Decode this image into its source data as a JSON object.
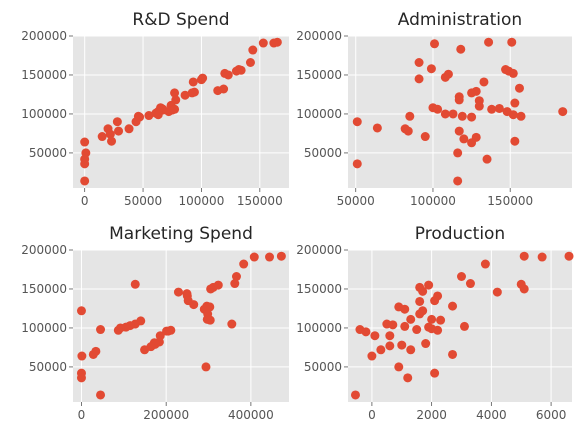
{
  "chart_data": [
    {
      "type": "scatter",
      "title": "R&D Spend",
      "xlim": [
        -10000,
        175000
      ],
      "ylim": [
        5000,
        200000
      ],
      "xticks": [
        0,
        50000,
        100000,
        150000
      ],
      "xtick_labels": [
        "0",
        "50000",
        "100000",
        "150000"
      ],
      "yticks": [
        50000,
        100000,
        150000,
        200000
      ],
      "ytick_labels": [
        "50000",
        "100000",
        "150000",
        "200000"
      ],
      "grid": true,
      "color": "#e24a33",
      "points": [
        [
          165000,
          192000
        ],
        [
          162000,
          191000
        ],
        [
          153000,
          191000
        ],
        [
          144000,
          182000
        ],
        [
          142000,
          166000
        ],
        [
          132000,
          157000
        ],
        [
          134000,
          156000
        ],
        [
          130000,
          155000
        ],
        [
          120000,
          152000
        ],
        [
          123000,
          150000
        ],
        [
          101000,
          146000
        ],
        [
          100000,
          144000
        ],
        [
          93000,
          141000
        ],
        [
          119000,
          132000
        ],
        [
          114000,
          130000
        ],
        [
          94000,
          128000
        ],
        [
          92000,
          127000
        ],
        [
          86000,
          124000
        ],
        [
          77000,
          127000
        ],
        [
          78000,
          118000
        ],
        [
          74000,
          111000
        ],
        [
          65000,
          108000
        ],
        [
          66000,
          107000
        ],
        [
          67000,
          106000
        ],
        [
          67000,
          105000
        ],
        [
          64000,
          104000
        ],
        [
          63000,
          103000
        ],
        [
          75000,
          105000
        ],
        [
          72000,
          103000
        ],
        [
          77000,
          106000
        ],
        [
          61000,
          101000
        ],
        [
          63000,
          99000
        ],
        [
          55000,
          98000
        ],
        [
          46000,
          97000
        ],
        [
          47000,
          96000
        ],
        [
          44000,
          90000
        ],
        [
          28000,
          90000
        ],
        [
          38000,
          81000
        ],
        [
          20000,
          81000
        ],
        [
          29000,
          78000
        ],
        [
          22000,
          74000
        ],
        [
          15000,
          71000
        ],
        [
          23000,
          65000
        ],
        [
          0,
          64000
        ],
        [
          1000,
          50000
        ],
        [
          0,
          42000
        ],
        [
          0,
          36000
        ],
        [
          0,
          14000
        ]
      ]
    },
    {
      "type": "scatter",
      "title": "Administration",
      "xlim": [
        45000,
        190000
      ],
      "ylim": [
        5000,
        200000
      ],
      "xticks": [
        50000,
        100000,
        150000
      ],
      "xtick_labels": [
        "50000",
        "100000",
        "150000"
      ],
      "yticks": [
        50000,
        100000,
        150000,
        200000
      ],
      "ytick_labels": [
        "50000",
        "100000",
        "150000",
        "200000"
      ],
      "grid": true,
      "color": "#e24a33",
      "points": [
        [
          136000,
          192000
        ],
        [
          151000,
          192000
        ],
        [
          101000,
          190000
        ],
        [
          118000,
          183000
        ],
        [
          91000,
          166000
        ],
        [
          99000,
          158000
        ],
        [
          147000,
          157000
        ],
        [
          149000,
          155000
        ],
        [
          152000,
          152000
        ],
        [
          110000,
          151000
        ],
        [
          108000,
          147000
        ],
        [
          91000,
          145000
        ],
        [
          133000,
          141000
        ],
        [
          156000,
          133000
        ],
        [
          128000,
          129000
        ],
        [
          125000,
          127000
        ],
        [
          117000,
          122000
        ],
        [
          130000,
          117000
        ],
        [
          153000,
          114000
        ],
        [
          117000,
          118000
        ],
        [
          130000,
          110000
        ],
        [
          143000,
          107000
        ],
        [
          138000,
          106000
        ],
        [
          184000,
          103000
        ],
        [
          148000,
          103000
        ],
        [
          100000,
          108000
        ],
        [
          103000,
          106000
        ],
        [
          152000,
          99000
        ],
        [
          157000,
          97000
        ],
        [
          119000,
          97000
        ],
        [
          113000,
          100000
        ],
        [
          108000,
          100000
        ],
        [
          125000,
          96000
        ],
        [
          85000,
          97000
        ],
        [
          51000,
          90000
        ],
        [
          64000,
          82000
        ],
        [
          82000,
          81000
        ],
        [
          117000,
          78000
        ],
        [
          84000,
          78000
        ],
        [
          95000,
          71000
        ],
        [
          128000,
          70000
        ],
        [
          120000,
          68000
        ],
        [
          125000,
          63000
        ],
        [
          153000,
          65000
        ],
        [
          116000,
          50000
        ],
        [
          51000,
          36000
        ],
        [
          135000,
          42000
        ],
        [
          116000,
          14000
        ]
      ]
    },
    {
      "type": "scatter",
      "title": "Marketing Spend",
      "xlim": [
        -20000,
        490000
      ],
      "ylim": [
        5000,
        200000
      ],
      "xticks": [
        0,
        200000,
        400000
      ],
      "xtick_labels": [
        "0",
        "200000",
        "400000"
      ],
      "yticks": [
        50000,
        100000,
        150000,
        200000
      ],
      "ytick_labels": [
        "50000",
        "100000",
        "150000",
        "200000"
      ],
      "grid": true,
      "color": "#e24a33",
      "points": [
        [
          472000,
          192000
        ],
        [
          444000,
          191000
        ],
        [
          408000,
          191000
        ],
        [
          383000,
          182000
        ],
        [
          366000,
          166000
        ],
        [
          362000,
          157000
        ],
        [
          127000,
          156000
        ],
        [
          323000,
          155000
        ],
        [
          311000,
          152000
        ],
        [
          305000,
          150000
        ],
        [
          229000,
          146000
        ],
        [
          249000,
          144000
        ],
        [
          250000,
          141000
        ],
        [
          252000,
          135000
        ],
        [
          265000,
          130000
        ],
        [
          296000,
          128000
        ],
        [
          303000,
          127000
        ],
        [
          290000,
          124000
        ],
        [
          0,
          122000
        ],
        [
          298000,
          118000
        ],
        [
          297000,
          111000
        ],
        [
          304000,
          110000
        ],
        [
          140000,
          109000
        ],
        [
          127000,
          105000
        ],
        [
          115000,
          103000
        ],
        [
          355000,
          105000
        ],
        [
          105000,
          101000
        ],
        [
          92000,
          100000
        ],
        [
          87000,
          97000
        ],
        [
          211000,
          97000
        ],
        [
          205000,
          96000
        ],
        [
          201000,
          96000
        ],
        [
          45000,
          98000
        ],
        [
          186000,
          90000
        ],
        [
          184000,
          82000
        ],
        [
          172000,
          81000
        ],
        [
          174000,
          79000
        ],
        [
          164000,
          76000
        ],
        [
          149000,
          72000
        ],
        [
          34000,
          70000
        ],
        [
          28000,
          66000
        ],
        [
          1000,
          64000
        ],
        [
          294000,
          50000
        ],
        [
          0,
          42000
        ],
        [
          0,
          36000
        ],
        [
          45000,
          14000
        ]
      ]
    },
    {
      "type": "scatter",
      "title": "Production",
      "xlim": [
        -800,
        6700
      ],
      "ylim": [
        5000,
        200000
      ],
      "xticks": [
        0,
        2000,
        4000,
        6000
      ],
      "xtick_labels": [
        "0",
        "2000",
        "4000",
        "6000"
      ],
      "yticks": [
        50000,
        100000,
        150000,
        200000
      ],
      "ytick_labels": [
        "50000",
        "100000",
        "150000",
        "200000"
      ],
      "grid": true,
      "color": "#e24a33",
      "points": [
        [
          6600,
          192000
        ],
        [
          5100,
          192000
        ],
        [
          5700,
          191000
        ],
        [
          3800,
          182000
        ],
        [
          3000,
          166000
        ],
        [
          3300,
          157000
        ],
        [
          5000,
          156000
        ],
        [
          1900,
          155000
        ],
        [
          5100,
          150000
        ],
        [
          1600,
          152000
        ],
        [
          4200,
          146000
        ],
        [
          1700,
          147000
        ],
        [
          2200,
          141000
        ],
        [
          2100,
          135000
        ],
        [
          1600,
          134000
        ],
        [
          2700,
          128000
        ],
        [
          900,
          127000
        ],
        [
          1100,
          124000
        ],
        [
          1600,
          118000
        ],
        [
          1700,
          122000
        ],
        [
          2000,
          111000
        ],
        [
          2300,
          110000
        ],
        [
          1300,
          111000
        ],
        [
          500,
          105000
        ],
        [
          700,
          104000
        ],
        [
          1100,
          102000
        ],
        [
          3100,
          102000
        ],
        [
          -400,
          98000
        ],
        [
          -200,
          95000
        ],
        [
          1900,
          101000
        ],
        [
          2000,
          99000
        ],
        [
          2200,
          97000
        ],
        [
          1500,
          98000
        ],
        [
          600,
          90000
        ],
        [
          100,
          90000
        ],
        [
          1800,
          80000
        ],
        [
          1000,
          78000
        ],
        [
          600,
          77000
        ],
        [
          1300,
          72000
        ],
        [
          300,
          72000
        ],
        [
          2700,
          66000
        ],
        [
          0,
          64000
        ],
        [
          900,
          50000
        ],
        [
          2100,
          42000
        ],
        [
          1200,
          36000
        ],
        [
          -550,
          14000
        ]
      ]
    }
  ]
}
